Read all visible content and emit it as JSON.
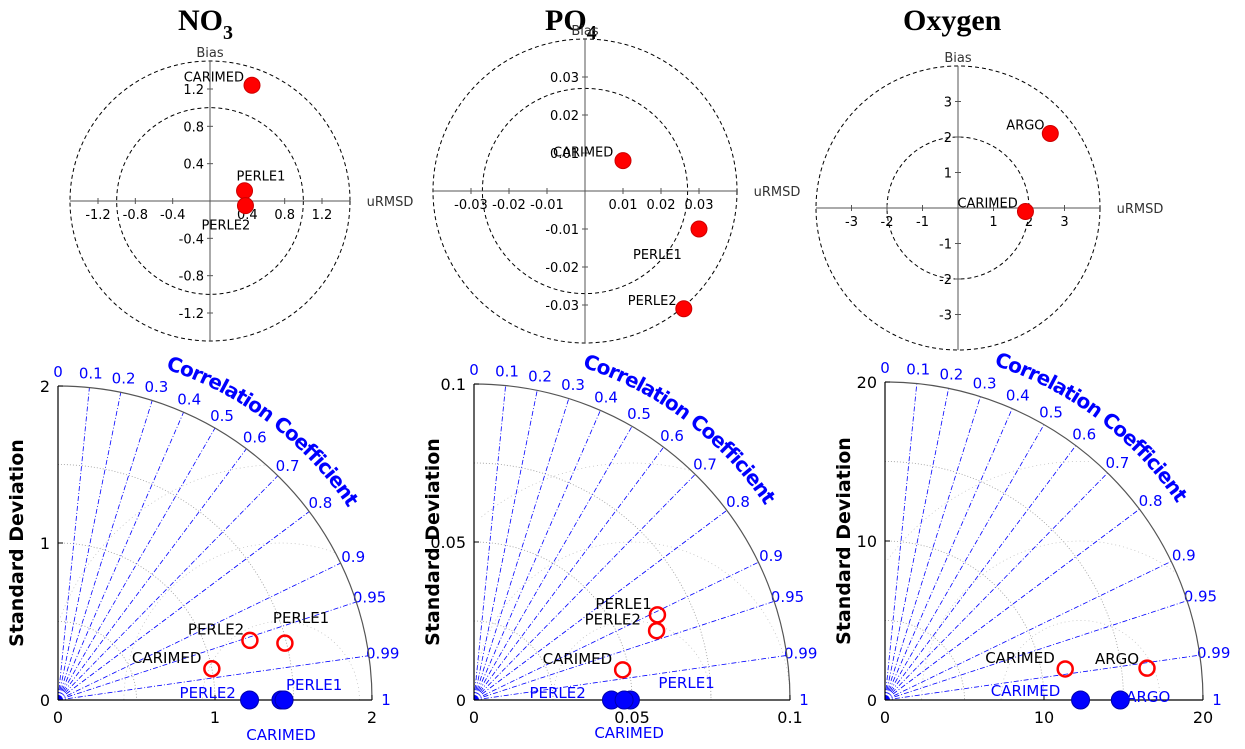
{
  "titles": [
    {
      "main": "NO",
      "sub": "3"
    },
    {
      "main": "PO",
      "sub": "4"
    },
    {
      "main": "Oxygen",
      "sub": ""
    }
  ],
  "chart_data": [
    {
      "type": "scatter",
      "panel": "target-diagram",
      "variable": "NO3",
      "xlabel": "uRMSD",
      "ylabel": "Bias",
      "xticks": [
        "-1.2",
        "-0.8",
        "-0.4",
        "0.4",
        "0.8",
        "1.2"
      ],
      "yticks": [
        "1.2",
        "0.8",
        "0.4",
        "-0.4",
        "-0.8",
        "-1.2"
      ],
      "tick_values": [
        -1.2,
        -0.8,
        -0.4,
        0.4,
        0.8,
        1.2
      ],
      "circles": [
        1.0,
        1.5
      ],
      "range": 1.5,
      "points": [
        {
          "label": "CARIMED",
          "x": 0.45,
          "y": 1.24
        },
        {
          "label": "PERLE1",
          "x": 0.37,
          "y": 0.11
        },
        {
          "label": "PERLE2",
          "x": 0.38,
          "y": -0.05
        }
      ],
      "marker_color": "#ff0000"
    },
    {
      "type": "scatter",
      "panel": "target-diagram",
      "variable": "PO4",
      "xlabel": "uRMSD",
      "ylabel": "Bias",
      "xticks": [
        "-0.03",
        "-0.02",
        "-0.01",
        "0.01",
        "0.02",
        "0.03"
      ],
      "yticks": [
        "0.03",
        "0.02",
        "0.01",
        "-0.01",
        "-0.02",
        "-0.03"
      ],
      "tick_values": [
        -0.03,
        -0.02,
        -0.01,
        0.01,
        0.02,
        0.03
      ],
      "circles": [
        0.027,
        0.04
      ],
      "range": 0.04,
      "points": [
        {
          "label": "CARIMED",
          "x": 0.01,
          "y": 0.008
        },
        {
          "label": "PERLE1",
          "x": 0.03,
          "y": -0.01
        },
        {
          "label": "PERLE2",
          "x": 0.026,
          "y": -0.031
        }
      ],
      "marker_color": "#ff0000"
    },
    {
      "type": "scatter",
      "panel": "target-diagram",
      "variable": "Oxygen",
      "xlabel": "uRMSD",
      "ylabel": "Bias",
      "xticks": [
        "-3",
        "-2",
        "-1",
        "1",
        "2",
        "3"
      ],
      "yticks": [
        "3",
        "2",
        "1",
        "-1",
        "-2",
        "-3"
      ],
      "tick_values": [
        -3,
        -2,
        -1,
        1,
        2,
        3
      ],
      "circles": [
        2,
        4
      ],
      "range": 4,
      "points": [
        {
          "label": "ARGO",
          "x": 2.6,
          "y": 2.1
        },
        {
          "label": "CARIMED",
          "x": 1.9,
          "y": -0.1
        }
      ],
      "marker_color": "#ff0000"
    },
    {
      "type": "scatter",
      "panel": "taylor-diagram",
      "variable": "NO3",
      "ylabel": "Standard Deviation",
      "arc_label": "Correlation Coefficient",
      "max": 2,
      "axis_ticks": [
        "0",
        "1",
        "2"
      ],
      "axis_tick_values": [
        0,
        1,
        2
      ],
      "std_arcs": [
        0.5,
        1.0,
        1.5
      ],
      "rms_center": 1.42,
      "rms_arcs": [
        0.5,
        1.0,
        1.5
      ],
      "correlation_ticks": [
        "0",
        "0.1",
        "0.2",
        "0.3",
        "0.4",
        "0.5",
        "0.6",
        "0.7",
        "0.8",
        "0.9",
        "0.95",
        "0.99",
        "1"
      ],
      "correlation_values": [
        0,
        0.1,
        0.2,
        0.3,
        0.4,
        0.5,
        0.6,
        0.7,
        0.8,
        0.9,
        0.95,
        0.99,
        1
      ],
      "models": [
        {
          "label": "PERLE1",
          "std": 1.49,
          "corr": 0.97
        },
        {
          "label": "PERLE2",
          "std": 1.28,
          "corr": 0.955
        },
        {
          "label": "CARIMED",
          "std": 1.0,
          "corr": 0.98
        }
      ],
      "references": [
        {
          "label": "PERLE2",
          "std": 1.22
        },
        {
          "label": "PERLE1",
          "std": 1.42
        },
        {
          "label": "CARIMED",
          "std": 1.44
        }
      ],
      "model_color": "#ff0000",
      "reference_color": "#0000ff",
      "axis_text_color": "#0000ff"
    },
    {
      "type": "scatter",
      "panel": "taylor-diagram",
      "variable": "PO4",
      "ylabel": "Standard Deviation",
      "arc_label": "Correlation Coefficient",
      "max": 0.1,
      "axis_ticks": [
        "0",
        "0.05",
        "0.1"
      ],
      "axis_tick_values": [
        0,
        0.05,
        0.1
      ],
      "std_arcs": [
        0.025,
        0.05,
        0.075
      ],
      "rms_center": 0.05,
      "rms_arcs": [
        0.025,
        0.05,
        0.075
      ],
      "correlation_ticks": [
        "0",
        "0.1",
        "0.2",
        "0.3",
        "0.4",
        "0.5",
        "0.6",
        "0.7",
        "0.8",
        "0.9",
        "0.95",
        "0.99",
        "1"
      ],
      "correlation_values": [
        0,
        0.1,
        0.2,
        0.3,
        0.4,
        0.5,
        0.6,
        0.7,
        0.8,
        0.9,
        0.95,
        0.99,
        1
      ],
      "models": [
        {
          "label": "PERLE1",
          "std": 0.064,
          "corr": 0.907
        },
        {
          "label": "PERLE2",
          "std": 0.0618,
          "corr": 0.935
        },
        {
          "label": "CARIMED",
          "std": 0.048,
          "corr": 0.98
        }
      ],
      "references": [
        {
          "label": "PERLE2",
          "std": 0.0435
        },
        {
          "label": "PERLE1",
          "std": 0.0495
        },
        {
          "label": "CARIMED",
          "std": 0.0475
        }
      ],
      "model_color": "#ff0000",
      "reference_color": "#0000ff",
      "axis_text_color": "#0000ff"
    },
    {
      "type": "scatter",
      "panel": "taylor-diagram",
      "variable": "Oxygen",
      "ylabel": "Standard Deviation",
      "arc_label": "Correlation Coefficient",
      "max": 20,
      "axis_ticks": [
        "0",
        "10",
        "20"
      ],
      "axis_tick_values": [
        0,
        10,
        20
      ],
      "std_arcs": [
        5,
        10,
        15
      ],
      "rms_center": 12.3,
      "rms_arcs": [
        5,
        10,
        15
      ],
      "correlation_ticks": [
        "0",
        "0.1",
        "0.2",
        "0.3",
        "0.4",
        "0.5",
        "0.6",
        "0.7",
        "0.8",
        "0.9",
        "0.95",
        "0.99",
        "1"
      ],
      "correlation_values": [
        0,
        0.1,
        0.2,
        0.3,
        0.4,
        0.5,
        0.6,
        0.7,
        0.8,
        0.9,
        0.95,
        0.99,
        1
      ],
      "models": [
        {
          "label": "ARGO",
          "std": 16.6,
          "corr": 0.9927
        },
        {
          "label": "CARIMED",
          "std": 11.5,
          "corr": 0.9855
        }
      ],
      "references": [
        {
          "label": "CARIMED",
          "std": 12.3
        },
        {
          "label": "ARGO",
          "std": 14.8
        }
      ],
      "model_color": "#ff0000",
      "reference_color": "#0000ff",
      "axis_text_color": "#0000ff"
    }
  ]
}
